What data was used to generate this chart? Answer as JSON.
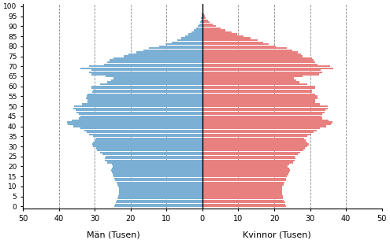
{
  "xlabel_left": "Män (Tusen)",
  "xlabel_right": "Kvinnor (Tusen)",
  "male_color": "#7BAFD4",
  "female_color": "#E88080",
  "background_color": "#ffffff",
  "xlim": 50,
  "ages": [
    0,
    1,
    2,
    3,
    4,
    5,
    6,
    7,
    8,
    9,
    10,
    11,
    12,
    13,
    14,
    15,
    16,
    17,
    18,
    19,
    20,
    21,
    22,
    23,
    24,
    25,
    26,
    27,
    28,
    29,
    30,
    31,
    32,
    33,
    34,
    35,
    36,
    37,
    38,
    39,
    40,
    41,
    42,
    43,
    44,
    45,
    46,
    47,
    48,
    49,
    50,
    51,
    52,
    53,
    54,
    55,
    56,
    57,
    58,
    59,
    60,
    61,
    62,
    63,
    64,
    65,
    66,
    67,
    68,
    69,
    70,
    71,
    72,
    73,
    74,
    75,
    76,
    77,
    78,
    79,
    80,
    81,
    82,
    83,
    84,
    85,
    86,
    87,
    88,
    89,
    90,
    91,
    92,
    93,
    94,
    95,
    96,
    97,
    98,
    99,
    100
  ],
  "males": [
    24.5,
    24.3,
    24.1,
    23.8,
    23.6,
    23.5,
    23.3,
    23.2,
    23.2,
    23.3,
    23.4,
    23.7,
    24.0,
    24.3,
    24.5,
    24.7,
    25.0,
    25.3,
    25.4,
    25.3,
    24.9,
    25.3,
    26.5,
    27.1,
    27.2,
    27.0,
    27.8,
    28.5,
    29.3,
    29.7,
    30.5,
    30.8,
    30.5,
    30.0,
    29.6,
    30.5,
    31.5,
    32.2,
    33.0,
    34.0,
    36.0,
    37.5,
    37.8,
    36.5,
    34.5,
    34.0,
    34.5,
    35.0,
    35.2,
    36.0,
    35.8,
    33.5,
    32.0,
    32.0,
    32.5,
    32.2,
    32.0,
    30.8,
    30.5,
    31.0,
    31.0,
    28.5,
    26.5,
    25.5,
    24.8,
    27.0,
    31.0,
    31.5,
    31.0,
    34.0,
    31.5,
    27.5,
    26.5,
    25.8,
    24.8,
    22.0,
    20.5,
    18.5,
    16.5,
    14.8,
    12.0,
    10.2,
    8.5,
    7.0,
    5.8,
    4.8,
    3.9,
    3.1,
    2.3,
    1.7,
    1.2,
    0.8,
    0.6,
    0.4,
    0.3,
    0.2,
    0.1,
    0.05,
    0.03,
    0.01,
    0.005
  ],
  "females": [
    23.3,
    23.1,
    23.0,
    22.7,
    22.5,
    22.4,
    22.2,
    22.1,
    22.1,
    22.2,
    22.3,
    22.6,
    22.9,
    23.2,
    23.4,
    23.6,
    23.9,
    24.2,
    24.3,
    24.1,
    23.7,
    24.1,
    25.2,
    25.8,
    26.0,
    25.8,
    26.6,
    27.3,
    28.1,
    28.5,
    29.3,
    29.6,
    29.2,
    28.7,
    28.4,
    29.3,
    30.2,
    31.0,
    31.8,
    32.7,
    34.5,
    35.8,
    36.2,
    35.2,
    33.5,
    33.2,
    33.5,
    34.0,
    34.2,
    35.0,
    35.0,
    32.8,
    31.5,
    31.5,
    32.0,
    32.0,
    31.5,
    30.5,
    30.5,
    31.5,
    31.5,
    29.3,
    27.0,
    26.2,
    25.5,
    28.0,
    32.5,
    33.5,
    33.0,
    36.5,
    35.5,
    32.0,
    31.5,
    31.0,
    30.5,
    28.0,
    27.5,
    26.5,
    25.0,
    23.5,
    20.5,
    18.5,
    17.0,
    15.5,
    13.5,
    11.5,
    9.8,
    8.2,
    6.5,
    5.0,
    3.8,
    2.8,
    2.1,
    1.5,
    1.0,
    0.7,
    0.4,
    0.2,
    0.1,
    0.05,
    0.02
  ]
}
